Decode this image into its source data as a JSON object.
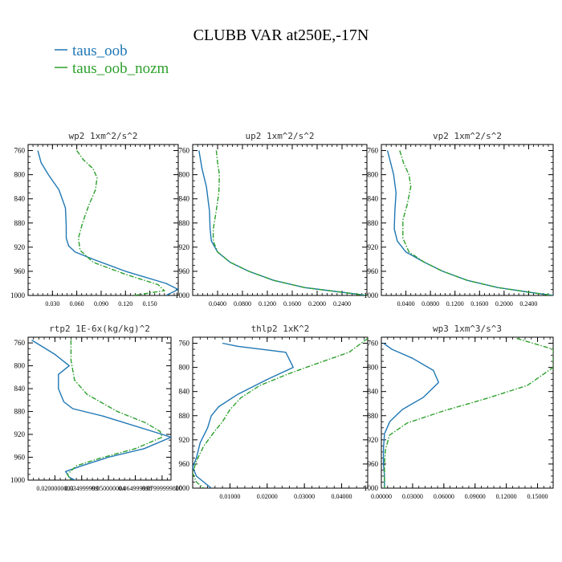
{
  "title": "CLUBB VAR at250E,-17N",
  "legend": [
    {
      "label": "taus_oob",
      "color": "#1f77b4",
      "dash": "solid"
    },
    {
      "label": "taus_oob_nozm",
      "color": "#2ca02c",
      "dash": "dashdot"
    }
  ],
  "chart_data": [
    {
      "type": "line",
      "title": "wp2  1xm^2/s^2",
      "xlim": [
        0.0,
        0.185
      ],
      "ylim": [
        750,
        1000
      ],
      "y_inverted": true,
      "xticks": [
        0.03,
        0.06,
        0.09,
        0.12,
        0.15
      ],
      "xticklabels": [
        "0.030",
        "0.060",
        "0.090",
        "0.120",
        "0.150"
      ],
      "yticks": [
        760,
        800,
        840,
        880,
        920,
        960,
        1000
      ],
      "series": [
        {
          "name": "taus_oob",
          "points": [
            [
              0.012,
              760
            ],
            [
              0.016,
              780
            ],
            [
              0.025,
              800
            ],
            [
              0.038,
              825
            ],
            [
              0.046,
              855
            ],
            [
              0.047,
              885
            ],
            [
              0.047,
              905
            ],
            [
              0.05,
              918
            ],
            [
              0.058,
              928
            ],
            [
              0.08,
              940
            ],
            [
              0.12,
              960
            ],
            [
              0.17,
              980
            ],
            [
              0.185,
              990
            ],
            [
              0.17,
              1000
            ]
          ]
        },
        {
          "name": "taus_oob_nozm",
          "points": [
            [
              0.06,
              760
            ],
            [
              0.068,
              775
            ],
            [
              0.08,
              790
            ],
            [
              0.085,
              805
            ],
            [
              0.083,
              825
            ],
            [
              0.075,
              850
            ],
            [
              0.067,
              880
            ],
            [
              0.062,
              905
            ],
            [
              0.064,
              925
            ],
            [
              0.08,
              945
            ],
            [
              0.12,
              965
            ],
            [
              0.16,
              982
            ],
            [
              0.168,
              992
            ],
            [
              0.13,
              1000
            ]
          ]
        }
      ]
    },
    {
      "type": "line",
      "title": "up2  1xm^2/s^2",
      "xlim": [
        0.0,
        0.28
      ],
      "ylim": [
        750,
        1000
      ],
      "y_inverted": true,
      "xticks": [
        0.04,
        0.08,
        0.12,
        0.16,
        0.2,
        0.24
      ],
      "xticklabels": [
        "0.0400",
        "0.0800",
        "0.1200",
        "0.1600",
        "0.2000",
        "0.2400"
      ],
      "yticks": [
        760,
        800,
        840,
        880,
        920,
        960,
        1000
      ],
      "series": [
        {
          "name": "taus_oob",
          "points": [
            [
              0.01,
              760
            ],
            [
              0.015,
              790
            ],
            [
              0.022,
              820
            ],
            [
              0.027,
              860
            ],
            [
              0.028,
              890
            ],
            [
              0.03,
              910
            ],
            [
              0.04,
              928
            ],
            [
              0.06,
              945
            ],
            [
              0.09,
              960
            ],
            [
              0.13,
              975
            ],
            [
              0.18,
              987
            ],
            [
              0.25,
              996
            ],
            [
              0.28,
              1000
            ]
          ]
        },
        {
          "name": "taus_oob_nozm",
          "points": [
            [
              0.038,
              760
            ],
            [
              0.04,
              780
            ],
            [
              0.043,
              800
            ],
            [
              0.042,
              830
            ],
            [
              0.037,
              865
            ],
            [
              0.033,
              890
            ],
            [
              0.033,
              910
            ],
            [
              0.04,
              928
            ],
            [
              0.06,
              945
            ],
            [
              0.09,
              960
            ],
            [
              0.13,
              975
            ],
            [
              0.18,
              987
            ],
            [
              0.25,
              996
            ],
            [
              0.28,
              1000
            ]
          ]
        }
      ]
    },
    {
      "type": "line",
      "title": "vp2  1xm^2/s^2",
      "xlim": [
        0.0,
        0.28
      ],
      "ylim": [
        750,
        1000
      ],
      "y_inverted": true,
      "xticks": [
        0.04,
        0.08,
        0.12,
        0.16,
        0.2,
        0.24
      ],
      "xticklabels": [
        "0.0400",
        "0.0800",
        "0.1200",
        "0.1600",
        "0.2000",
        "0.2400"
      ],
      "yticks": [
        760,
        800,
        840,
        880,
        920,
        960,
        1000
      ],
      "series": [
        {
          "name": "taus_oob",
          "points": [
            [
              0.01,
              760
            ],
            [
              0.015,
              780
            ],
            [
              0.02,
              800
            ],
            [
              0.024,
              830
            ],
            [
              0.022,
              860
            ],
            [
              0.021,
              890
            ],
            [
              0.026,
              910
            ],
            [
              0.04,
              928
            ],
            [
              0.07,
              945
            ],
            [
              0.1,
              960
            ],
            [
              0.14,
              975
            ],
            [
              0.19,
              987
            ],
            [
              0.25,
              996
            ],
            [
              0.28,
              1000
            ]
          ]
        },
        {
          "name": "taus_oob_nozm",
          "points": [
            [
              0.03,
              760
            ],
            [
              0.036,
              780
            ],
            [
              0.045,
              800
            ],
            [
              0.048,
              820
            ],
            [
              0.042,
              850
            ],
            [
              0.035,
              875
            ],
            [
              0.035,
              905
            ],
            [
              0.045,
              928
            ],
            [
              0.07,
              945
            ],
            [
              0.1,
              960
            ],
            [
              0.14,
              975
            ],
            [
              0.19,
              987
            ],
            [
              0.25,
              996
            ],
            [
              0.28,
              1000
            ]
          ]
        }
      ]
    },
    {
      "type": "line",
      "title": "rtp2  1E-6x(kg/kg)^2",
      "xlim": [
        0.005,
        0.085
      ],
      "ylim": [
        750,
        1000
      ],
      "y_inverted": true,
      "xticks": [
        0.02,
        0.035,
        0.05,
        0.065,
        0.08
      ],
      "xticklabels": [
        "0.0200000003",
        "0.034999999",
        "0.050000004",
        "0.064999998",
        "0.07999999800"
      ],
      "yticks": [
        760,
        800,
        840,
        880,
        920,
        960,
        1000
      ],
      "series": [
        {
          "name": "taus_oob",
          "points": [
            [
              0.007,
              755
            ],
            [
              0.02,
              780
            ],
            [
              0.028,
              800
            ],
            [
              0.022,
              815
            ],
            [
              0.022,
              840
            ],
            [
              0.025,
              863
            ],
            [
              0.03,
              875
            ],
            [
              0.047,
              888
            ],
            [
              0.08,
              920
            ],
            [
              0.085,
              925
            ],
            [
              0.07,
              945
            ],
            [
              0.05,
              960
            ],
            [
              0.035,
              975
            ],
            [
              0.026,
              985
            ],
            [
              0.028,
              995
            ],
            [
              0.033,
              1003
            ]
          ]
        },
        {
          "name": "taus_oob_nozm",
          "points": [
            [
              0.029,
              755
            ],
            [
              0.029,
              790
            ],
            [
              0.031,
              825
            ],
            [
              0.038,
              850
            ],
            [
              0.055,
              880
            ],
            [
              0.071,
              900
            ],
            [
              0.079,
              915
            ],
            [
              0.08,
              925
            ],
            [
              0.065,
              945
            ],
            [
              0.045,
              962
            ],
            [
              0.032,
              975
            ],
            [
              0.027,
              990
            ],
            [
              0.029,
              1000
            ]
          ]
        }
      ]
    },
    {
      "type": "line",
      "title": "thlp2  1xK^2",
      "xlim": [
        0.0,
        0.047
      ],
      "ylim": [
        750,
        1000
      ],
      "y_inverted": true,
      "xticks": [
        0.01,
        0.02,
        0.03,
        0.04
      ],
      "xticklabels": [
        "0.01000",
        "0.02000",
        "0.03000",
        "0.04000"
      ],
      "yticks": [
        760,
        800,
        840,
        880,
        920,
        960,
        1000
      ],
      "series": [
        {
          "name": "taus_oob",
          "points": [
            [
              0.008,
              760
            ],
            [
              0.012,
              765
            ],
            [
              0.025,
              775
            ],
            [
              0.027,
              800
            ],
            [
              0.02,
              820
            ],
            [
              0.012,
              845
            ],
            [
              0.007,
              865
            ],
            [
              0.005,
              880
            ],
            [
              0.004,
              900
            ],
            [
              0.002,
              925
            ],
            [
              0.001,
              950
            ],
            [
              0.0,
              965
            ],
            [
              0.001,
              980
            ],
            [
              0.003,
              990
            ],
            [
              0.005,
              1000
            ]
          ]
        },
        {
          "name": "taus_oob_nozm",
          "points": [
            [
              0.047,
              752
            ],
            [
              0.042,
              775
            ],
            [
              0.035,
              790
            ],
            [
              0.026,
              810
            ],
            [
              0.018,
              830
            ],
            [
              0.013,
              850
            ],
            [
              0.01,
              870
            ],
            [
              0.008,
              890
            ],
            [
              0.006,
              905
            ],
            [
              0.003,
              930
            ],
            [
              0.001,
              955
            ],
            [
              0.0,
              975
            ],
            [
              0.001,
              990
            ],
            [
              0.003,
              1000
            ]
          ]
        }
      ]
    },
    {
      "type": "line",
      "title": "wp3  1xm^3/s^3",
      "xlim": [
        0.0,
        0.165
      ],
      "ylim": [
        750,
        1000
      ],
      "y_inverted": true,
      "xticks": [
        0.0,
        0.03,
        0.06,
        0.09,
        0.12,
        0.15
      ],
      "xticklabels": [
        "0.00000",
        "0.03000",
        "0.06000",
        "0.09000",
        "0.12000",
        "0.15000"
      ],
      "yticks": [
        760,
        800,
        840,
        880,
        920,
        960,
        1000
      ],
      "series": [
        {
          "name": "taus_oob",
          "points": [
            [
              0.002,
              760
            ],
            [
              0.01,
              770
            ],
            [
              0.03,
              785
            ],
            [
              0.05,
              805
            ],
            [
              0.055,
              825
            ],
            [
              0.04,
              850
            ],
            [
              0.02,
              870
            ],
            [
              0.008,
              890
            ],
            [
              0.003,
              910
            ],
            [
              0.002,
              935
            ],
            [
              0.002,
              960
            ],
            [
              0.003,
              980
            ],
            [
              0.003,
              1000
            ]
          ]
        },
        {
          "name": "taus_oob_nozm",
          "points": [
            [
              0.13,
              752
            ],
            [
              0.165,
              770
            ],
            [
              0.165,
              800
            ],
            [
              0.14,
              830
            ],
            [
              0.1,
              852
            ],
            [
              0.06,
              872
            ],
            [
              0.025,
              892
            ],
            [
              0.008,
              912
            ],
            [
              0.004,
              935
            ],
            [
              0.003,
              960
            ],
            [
              0.003,
              1000
            ]
          ]
        }
      ]
    }
  ]
}
